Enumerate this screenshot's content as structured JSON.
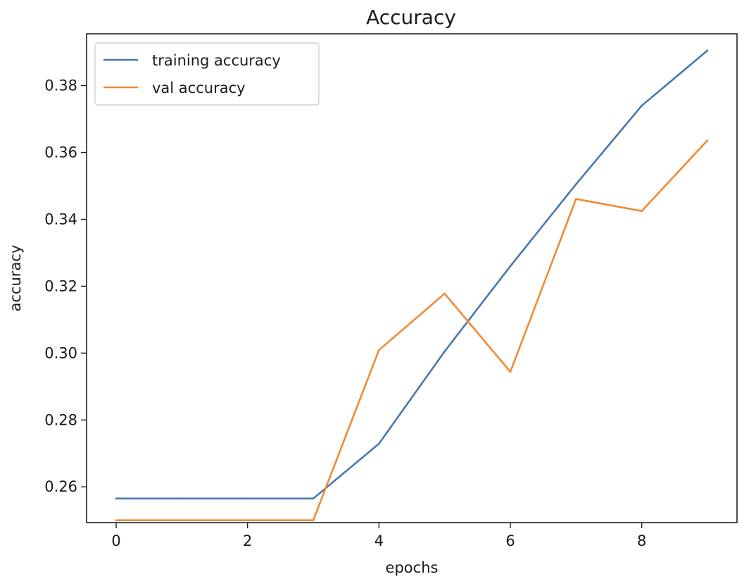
{
  "chart_data": {
    "type": "line",
    "title": "Accuracy",
    "xlabel": "epochs",
    "ylabel": "accuracy",
    "x": [
      0,
      1,
      2,
      3,
      4,
      5,
      6,
      7,
      8,
      9
    ],
    "xlim": [
      -0.45,
      9.45
    ],
    "ylim": [
      0.2493,
      0.3955
    ],
    "xticks": [
      0,
      2,
      4,
      6,
      8
    ],
    "xtick_labels": [
      "0",
      "2",
      "4",
      "6",
      "8"
    ],
    "yticks": [
      0.26,
      0.28,
      0.3,
      0.32,
      0.34,
      0.36,
      0.38
    ],
    "ytick_labels": [
      "0.26",
      "0.28",
      "0.30",
      "0.32",
      "0.34",
      "0.36",
      "0.38"
    ],
    "grid": false,
    "legend_position": "top-left",
    "series": [
      {
        "name": "training accuracy",
        "color": "#4878b0",
        "values": [
          0.2565,
          0.2565,
          0.2565,
          0.2565,
          0.2729,
          0.3005,
          0.326,
          0.3505,
          0.374,
          0.3905
        ]
      },
      {
        "name": "val accuracy",
        "color": "#f08a35",
        "values": [
          0.25,
          0.25,
          0.25,
          0.25,
          0.3009,
          0.3178,
          0.2944,
          0.3461,
          0.3425,
          0.3636
        ]
      }
    ]
  }
}
